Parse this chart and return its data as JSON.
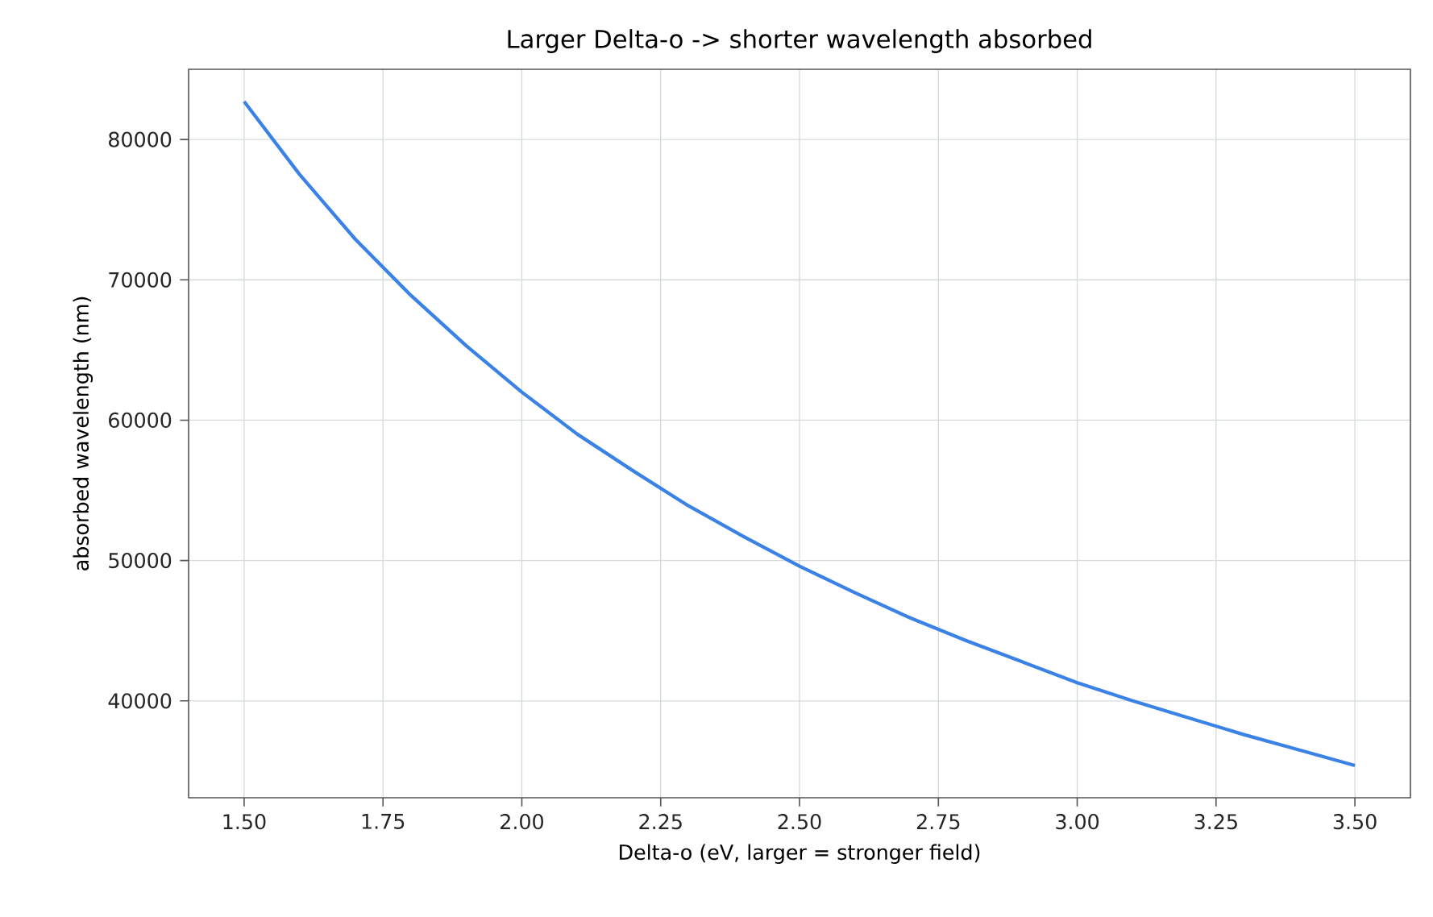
{
  "chart_data": {
    "type": "line",
    "title": "Larger Delta-o -> shorter wavelength absorbed",
    "xlabel": "Delta-o (eV, larger = stronger field)",
    "ylabel": "absorbed wavelength (nm)",
    "x": [
      1.5,
      1.6,
      1.7,
      1.8,
      1.9,
      2.0,
      2.1,
      2.2,
      2.3,
      2.4,
      2.5,
      2.6,
      2.7,
      2.8,
      2.9,
      3.0,
      3.1,
      3.2,
      3.3,
      3.4,
      3.5
    ],
    "series": [
      {
        "color": "#3b82e6",
        "values": [
          82700,
          77500,
          72900,
          68900,
          65300,
          62000,
          59000,
          56400,
          53900,
          51700,
          49600,
          47700,
          45900,
          44300,
          42800,
          41300,
          40000,
          38800,
          37600,
          36500,
          35400
        ]
      }
    ],
    "xlim": [
      1.4,
      3.6
    ],
    "ylim": [
      33100,
      85000
    ],
    "xticks": [
      {
        "value": 1.5,
        "label": "1.50"
      },
      {
        "value": 1.75,
        "label": "1.75"
      },
      {
        "value": 2.0,
        "label": "2.00"
      },
      {
        "value": 2.25,
        "label": "2.25"
      },
      {
        "value": 2.5,
        "label": "2.50"
      },
      {
        "value": 2.75,
        "label": "2.75"
      },
      {
        "value": 3.0,
        "label": "3.00"
      },
      {
        "value": 3.25,
        "label": "3.25"
      },
      {
        "value": 3.5,
        "label": "3.50"
      }
    ],
    "yticks": [
      40000,
      50000,
      60000,
      70000,
      80000
    ],
    "grid": true,
    "marker": "none",
    "line_style": "solid"
  }
}
